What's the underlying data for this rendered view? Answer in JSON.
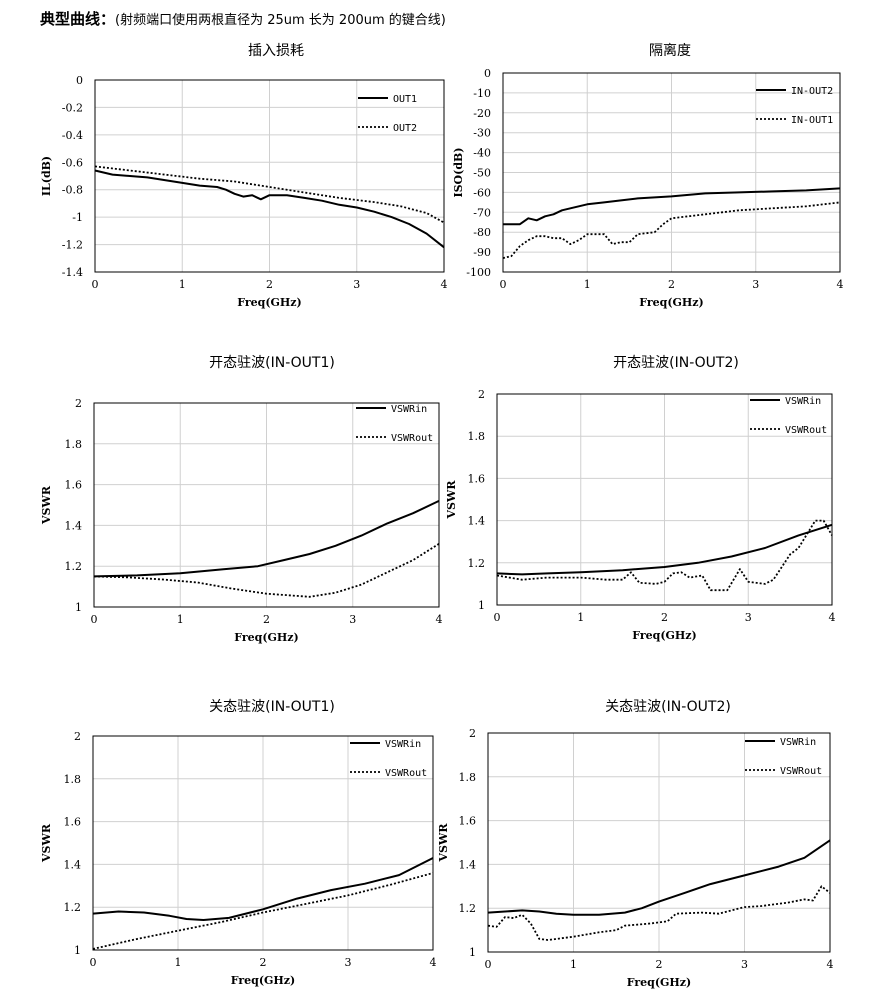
{
  "heading": {
    "bold": "典型曲线：",
    "note": "(射频端口使用两根直径为 25um 长为 200um 的键合线)"
  },
  "colors": {
    "line": "#000000",
    "grid": "#d0d0d0",
    "frame": "#000000"
  },
  "chart_data": [
    {
      "type": "line",
      "title": "插入损耗",
      "xlabel": "Freq(GHz)",
      "ylabel": "IL(dB)",
      "xlim": [
        0,
        4
      ],
      "ylim": [
        -1.4,
        0
      ],
      "xticks": [
        "0",
        "1",
        "2",
        "3",
        "4"
      ],
      "yticks": [
        "0",
        "-0.2",
        "-0.4",
        "-0.6",
        "-0.8",
        "-1",
        "-1.2",
        "-1.4"
      ],
      "legend": "top-right",
      "grid": true,
      "series": [
        {
          "name": "OUT1",
          "style": "solid",
          "points": [
            [
              0,
              -0.66
            ],
            [
              0.2,
              -0.69
            ],
            [
              0.4,
              -0.7
            ],
            [
              0.6,
              -0.71
            ],
            [
              0.8,
              -0.73
            ],
            [
              1.0,
              -0.75
            ],
            [
              1.2,
              -0.77
            ],
            [
              1.4,
              -0.78
            ],
            [
              1.5,
              -0.8
            ],
            [
              1.6,
              -0.83
            ],
            [
              1.7,
              -0.85
            ],
            [
              1.8,
              -0.84
            ],
            [
              1.9,
              -0.87
            ],
            [
              2.0,
              -0.84
            ],
            [
              2.2,
              -0.84
            ],
            [
              2.4,
              -0.86
            ],
            [
              2.6,
              -0.88
            ],
            [
              2.8,
              -0.91
            ],
            [
              3.0,
              -0.93
            ],
            [
              3.2,
              -0.96
            ],
            [
              3.4,
              -1.0
            ],
            [
              3.6,
              -1.05
            ],
            [
              3.8,
              -1.12
            ],
            [
              4.0,
              -1.22
            ]
          ]
        },
        {
          "name": "OUT2",
          "style": "dotted",
          "points": [
            [
              0,
              -0.63
            ],
            [
              0.4,
              -0.66
            ],
            [
              0.8,
              -0.69
            ],
            [
              1.2,
              -0.72
            ],
            [
              1.6,
              -0.74
            ],
            [
              2.0,
              -0.78
            ],
            [
              2.4,
              -0.82
            ],
            [
              2.8,
              -0.86
            ],
            [
              3.2,
              -0.89
            ],
            [
              3.5,
              -0.92
            ],
            [
              3.8,
              -0.97
            ],
            [
              4.0,
              -1.04
            ]
          ]
        }
      ]
    },
    {
      "type": "line",
      "title": "隔离度",
      "xlabel": "Freq(GHz)",
      "ylabel": "ISO(dB)",
      "xlim": [
        0,
        4
      ],
      "ylim": [
        -100,
        0
      ],
      "xticks": [
        "0",
        "1",
        "2",
        "3",
        "4"
      ],
      "yticks": [
        "0",
        "-10",
        "-20",
        "-30",
        "-40",
        "-50",
        "-60",
        "-70",
        "-80",
        "-90",
        "-100"
      ],
      "legend": "top-right",
      "grid": true,
      "series": [
        {
          "name": "IN-OUT2",
          "style": "solid",
          "points": [
            [
              0,
              -76
            ],
            [
              0.2,
              -76
            ],
            [
              0.3,
              -73
            ],
            [
              0.4,
              -74
            ],
            [
              0.5,
              -72
            ],
            [
              0.6,
              -71
            ],
            [
              0.7,
              -69
            ],
            [
              0.8,
              -68
            ],
            [
              1.0,
              -66
            ],
            [
              1.2,
              -65
            ],
            [
              1.4,
              -64
            ],
            [
              1.6,
              -63
            ],
            [
              2.0,
              -62
            ],
            [
              2.4,
              -60.5
            ],
            [
              2.8,
              -60
            ],
            [
              3.2,
              -59.5
            ],
            [
              3.6,
              -59
            ],
            [
              3.8,
              -58.5
            ],
            [
              4.0,
              -58
            ]
          ]
        },
        {
          "name": "IN-OUT1",
          "style": "dotted",
          "points": [
            [
              0,
              -93
            ],
            [
              0.1,
              -92
            ],
            [
              0.2,
              -87
            ],
            [
              0.3,
              -84
            ],
            [
              0.4,
              -82
            ],
            [
              0.5,
              -82
            ],
            [
              0.6,
              -83
            ],
            [
              0.7,
              -83
            ],
            [
              0.8,
              -86
            ],
            [
              0.9,
              -84
            ],
            [
              1.0,
              -81
            ],
            [
              1.1,
              -81
            ],
            [
              1.2,
              -81
            ],
            [
              1.3,
              -86
            ],
            [
              1.4,
              -85
            ],
            [
              1.5,
              -85
            ],
            [
              1.6,
              -81
            ],
            [
              1.8,
              -80
            ],
            [
              1.9,
              -76
            ],
            [
              2.0,
              -73
            ],
            [
              2.4,
              -71
            ],
            [
              2.8,
              -69
            ],
            [
              3.2,
              -68
            ],
            [
              3.6,
              -67
            ],
            [
              4.0,
              -65
            ]
          ]
        }
      ]
    },
    {
      "type": "line",
      "title": "开态驻波(IN-OUT1)",
      "xlabel": "Freq(GHz)",
      "ylabel": "VSWR",
      "xlim": [
        0,
        4
      ],
      "ylim": [
        1,
        2
      ],
      "xticks": [
        "0",
        "1",
        "2",
        "3",
        "4"
      ],
      "yticks": [
        "2",
        "1.8",
        "1.6",
        "1.4",
        "1.2",
        "1"
      ],
      "legend": "top-right",
      "grid": true,
      "series": [
        {
          "name": "VSWRin",
          "style": "solid",
          "points": [
            [
              0,
              1.15
            ],
            [
              0.5,
              1.155
            ],
            [
              1.0,
              1.165
            ],
            [
              1.5,
              1.185
            ],
            [
              1.9,
              1.2
            ],
            [
              2.2,
              1.23
            ],
            [
              2.5,
              1.26
            ],
            [
              2.8,
              1.3
            ],
            [
              3.1,
              1.35
            ],
            [
              3.4,
              1.41
            ],
            [
              3.7,
              1.46
            ],
            [
              4.0,
              1.52
            ]
          ]
        },
        {
          "name": "VSWRout",
          "style": "dotted",
          "points": [
            [
              0,
              1.15
            ],
            [
              0.4,
              1.145
            ],
            [
              0.8,
              1.135
            ],
            [
              1.2,
              1.12
            ],
            [
              1.6,
              1.09
            ],
            [
              2.0,
              1.065
            ],
            [
              2.5,
              1.05
            ],
            [
              2.8,
              1.07
            ],
            [
              3.1,
              1.11
            ],
            [
              3.4,
              1.17
            ],
            [
              3.7,
              1.23
            ],
            [
              4.0,
              1.31
            ]
          ]
        }
      ]
    },
    {
      "type": "line",
      "title": "开态驻波(IN-OUT2)",
      "xlabel": "Freq(GHz)",
      "ylabel": "VSWR",
      "xlim": [
        0,
        4
      ],
      "ylim": [
        1,
        2
      ],
      "xticks": [
        "0",
        "1",
        "2",
        "3",
        "4"
      ],
      "yticks": [
        "2",
        "1.8",
        "1.6",
        "1.4",
        "1.2",
        "1"
      ],
      "legend": "top-right",
      "grid": true,
      "series": [
        {
          "name": "VSWRin",
          "style": "solid",
          "points": [
            [
              0,
              1.15
            ],
            [
              0.3,
              1.145
            ],
            [
              0.6,
              1.15
            ],
            [
              1.0,
              1.155
            ],
            [
              1.5,
              1.165
            ],
            [
              2.0,
              1.18
            ],
            [
              2.4,
              1.2
            ],
            [
              2.8,
              1.23
            ],
            [
              3.2,
              1.27
            ],
            [
              3.6,
              1.33
            ],
            [
              4.0,
              1.38
            ]
          ]
        },
        {
          "name": "VSWRout",
          "style": "dotted",
          "points": [
            [
              0,
              1.14
            ],
            [
              0.3,
              1.12
            ],
            [
              0.6,
              1.13
            ],
            [
              1.0,
              1.13
            ],
            [
              1.3,
              1.12
            ],
            [
              1.5,
              1.12
            ],
            [
              1.6,
              1.155
            ],
            [
              1.7,
              1.105
            ],
            [
              1.9,
              1.1
            ],
            [
              2.0,
              1.11
            ],
            [
              2.1,
              1.15
            ],
            [
              2.2,
              1.155
            ],
            [
              2.3,
              1.13
            ],
            [
              2.45,
              1.14
            ],
            [
              2.55,
              1.07
            ],
            [
              2.75,
              1.07
            ],
            [
              2.9,
              1.17
            ],
            [
              3.0,
              1.11
            ],
            [
              3.2,
              1.1
            ],
            [
              3.3,
              1.12
            ],
            [
              3.5,
              1.24
            ],
            [
              3.6,
              1.27
            ],
            [
              3.8,
              1.4
            ],
            [
              3.9,
              1.4
            ],
            [
              4.0,
              1.33
            ]
          ]
        }
      ]
    },
    {
      "type": "line",
      "title": "关态驻波(IN-OUT1)",
      "xlabel": "Freq(GHz)",
      "ylabel": "VSWR",
      "xlim": [
        0,
        4
      ],
      "ylim": [
        1,
        2
      ],
      "xticks": [
        "0",
        "1",
        "2",
        "3",
        "4"
      ],
      "yticks": [
        "2",
        "1.8",
        "1.6",
        "1.4",
        "1.2",
        "1"
      ],
      "legend": "top-right",
      "grid": true,
      "series": [
        {
          "name": "VSWRin",
          "style": "solid",
          "points": [
            [
              0,
              1.17
            ],
            [
              0.3,
              1.18
            ],
            [
              0.6,
              1.175
            ],
            [
              0.9,
              1.16
            ],
            [
              1.1,
              1.145
            ],
            [
              1.3,
              1.14
            ],
            [
              1.6,
              1.15
            ],
            [
              2.0,
              1.19
            ],
            [
              2.4,
              1.24
            ],
            [
              2.8,
              1.28
            ],
            [
              3.2,
              1.31
            ],
            [
              3.6,
              1.35
            ],
            [
              4.0,
              1.43
            ]
          ]
        },
        {
          "name": "VSWRout",
          "style": "dotted",
          "points": [
            [
              0,
              1.005
            ],
            [
              0.5,
              1.05
            ],
            [
              1.0,
              1.09
            ],
            [
              1.5,
              1.13
            ],
            [
              2.0,
              1.175
            ],
            [
              2.5,
              1.215
            ],
            [
              3.0,
              1.255
            ],
            [
              3.5,
              1.305
            ],
            [
              4.0,
              1.36
            ]
          ]
        }
      ]
    },
    {
      "type": "line",
      "title": "关态驻波(IN-OUT2)",
      "xlabel": "Freq(GHz)",
      "ylabel": "VSWR",
      "xlim": [
        0,
        4
      ],
      "ylim": [
        1,
        2
      ],
      "xticks": [
        "0",
        "1",
        "2",
        "3",
        "4"
      ],
      "yticks": [
        "2",
        "1.8",
        "1.6",
        "1.4",
        "1.2",
        "1"
      ],
      "legend": "top-right",
      "grid": true,
      "series": [
        {
          "name": "VSWRin",
          "style": "solid",
          "points": [
            [
              0,
              1.18
            ],
            [
              0.2,
              1.185
            ],
            [
              0.4,
              1.19
            ],
            [
              0.6,
              1.185
            ],
            [
              0.8,
              1.175
            ],
            [
              1.0,
              1.17
            ],
            [
              1.3,
              1.17
            ],
            [
              1.6,
              1.18
            ],
            [
              1.8,
              1.2
            ],
            [
              2.0,
              1.23
            ],
            [
              2.3,
              1.27
            ],
            [
              2.6,
              1.31
            ],
            [
              3.0,
              1.35
            ],
            [
              3.4,
              1.39
            ],
            [
              3.7,
              1.43
            ],
            [
              4.0,
              1.51
            ]
          ]
        },
        {
          "name": "VSWRout",
          "style": "dotted",
          "points": [
            [
              0,
              1.12
            ],
            [
              0.1,
              1.115
            ],
            [
              0.2,
              1.16
            ],
            [
              0.3,
              1.155
            ],
            [
              0.4,
              1.17
            ],
            [
              0.5,
              1.13
            ],
            [
              0.6,
              1.06
            ],
            [
              0.7,
              1.055
            ],
            [
              1.0,
              1.07
            ],
            [
              1.3,
              1.09
            ],
            [
              1.5,
              1.1
            ],
            [
              1.6,
              1.12
            ],
            [
              1.9,
              1.13
            ],
            [
              2.1,
              1.14
            ],
            [
              2.2,
              1.175
            ],
            [
              2.5,
              1.18
            ],
            [
              2.7,
              1.175
            ],
            [
              3.0,
              1.205
            ],
            [
              3.2,
              1.21
            ],
            [
              3.5,
              1.225
            ],
            [
              3.7,
              1.24
            ],
            [
              3.8,
              1.235
            ],
            [
              3.9,
              1.3
            ],
            [
              4.0,
              1.27
            ]
          ]
        }
      ]
    }
  ]
}
